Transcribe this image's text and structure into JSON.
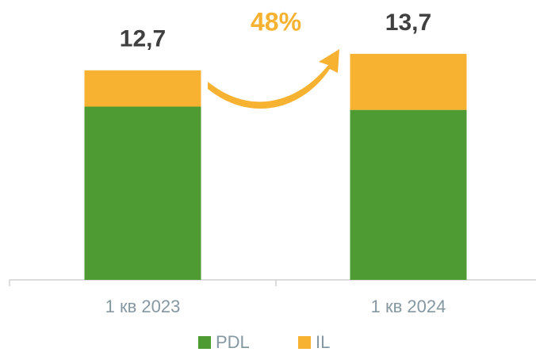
{
  "chart_data": {
    "type": "stacked-bar",
    "categories": [
      "1 кв 2023",
      "1 кв 2024"
    ],
    "series": [
      {
        "name": "PDL",
        "color": "#4e9a33",
        "values": [
          10.5,
          10.3
        ]
      },
      {
        "name": "IL",
        "color": "#f7b232",
        "values": [
          2.2,
          3.4
        ]
      }
    ],
    "totals": {
      "values": [
        12.7,
        13.7
      ],
      "value_labels": [
        "12,7",
        "13,7"
      ]
    },
    "annotation": "48%",
    "ylim": [
      0,
      16
    ]
  }
}
